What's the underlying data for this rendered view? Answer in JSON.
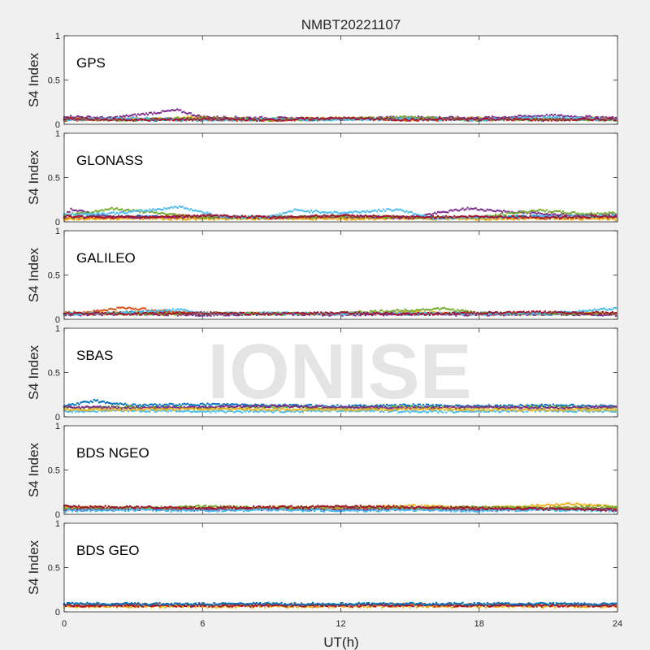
{
  "figure": {
    "title": "NMBT20221107",
    "xlabel": "UT(h)",
    "watermark": "IONISE",
    "background_color": "#f0f0f0",
    "axes_color": "#ffffff",
    "watermark_color": "#e4e4e4"
  },
  "palette": [
    "#0072bd",
    "#d95319",
    "#edb120",
    "#7e2f8e",
    "#77ac30",
    "#4dbeee",
    "#a2142f"
  ],
  "chart_data": [
    {
      "type": "scatter",
      "panel_label": "GPS",
      "ylabel": "S4 Index",
      "xlim": [
        0,
        24
      ],
      "ylim": [
        0,
        1
      ],
      "xticks": [
        0,
        6,
        12,
        18,
        24
      ],
      "yticks": [
        0,
        0.5,
        1
      ],
      "ytick_labels": [
        "0",
        "0.5",
        "1"
      ],
      "show_xtick_labels": false,
      "series": [
        {
          "color": "#0072bd",
          "x": [
            0,
            3,
            6,
            9,
            12,
            15,
            18,
            21,
            24
          ],
          "y": [
            0.06,
            0.05,
            0.05,
            0.06,
            0.05,
            0.07,
            0.06,
            0.05,
            0.06
          ]
        },
        {
          "color": "#d95319",
          "x": [
            0,
            3,
            6,
            9,
            12,
            15,
            18,
            21,
            24
          ],
          "y": [
            0.05,
            0.06,
            0.05,
            0.05,
            0.06,
            0.05,
            0.05,
            0.06,
            0.05
          ]
        },
        {
          "color": "#edb120",
          "x": [
            0,
            3,
            6,
            9,
            12,
            15,
            18,
            21,
            24
          ],
          "y": [
            0.07,
            0.06,
            0.08,
            0.06,
            0.07,
            0.06,
            0.07,
            0.06,
            0.07
          ]
        },
        {
          "color": "#7e2f8e",
          "x": [
            0,
            2,
            4.9,
            6,
            9,
            12,
            15,
            18,
            21,
            24
          ],
          "y": [
            0.09,
            0.07,
            0.16,
            0.08,
            0.07,
            0.06,
            0.08,
            0.07,
            0.1,
            0.07
          ]
        },
        {
          "color": "#77ac30",
          "x": [
            0,
            3,
            6,
            9,
            12,
            15,
            18,
            21,
            24
          ],
          "y": [
            0.06,
            0.05,
            0.07,
            0.05,
            0.06,
            0.08,
            0.05,
            0.06,
            0.05
          ]
        },
        {
          "color": "#4dbeee",
          "x": [
            0,
            3,
            6,
            9,
            12,
            15,
            18,
            21,
            24
          ],
          "y": [
            0.05,
            0.07,
            0.05,
            0.06,
            0.05,
            0.06,
            0.05,
            0.08,
            0.05
          ]
        },
        {
          "color": "#a2142f",
          "x": [
            0,
            3,
            6,
            9,
            12,
            15,
            18,
            21,
            24
          ],
          "y": [
            0.06,
            0.05,
            0.06,
            0.05,
            0.07,
            0.05,
            0.06,
            0.05,
            0.06
          ]
        }
      ]
    },
    {
      "type": "scatter",
      "panel_label": "GLONASS",
      "ylabel": "S4 Index",
      "xlim": [
        0,
        24
      ],
      "ylim": [
        0,
        1
      ],
      "xticks": [
        0,
        6,
        12,
        18,
        24
      ],
      "yticks": [
        0,
        0.5,
        1
      ],
      "ytick_labels": [
        "0",
        "0.5",
        "1"
      ],
      "show_xtick_labels": false,
      "series": [
        {
          "color": "#0072bd",
          "x": [
            0,
            3,
            6,
            9,
            12,
            15,
            18,
            21,
            24
          ],
          "y": [
            0.05,
            0.06,
            0.05,
            0.05,
            0.06,
            0.05,
            0.05,
            0.06,
            0.05
          ]
        },
        {
          "color": "#d95319",
          "x": [
            0,
            3,
            6,
            9,
            12,
            15,
            18,
            21,
            24
          ],
          "y": [
            0.04,
            0.05,
            0.05,
            0.04,
            0.05,
            0.04,
            0.05,
            0.04,
            0.05
          ]
        },
        {
          "color": "#edb120",
          "x": [
            0,
            3,
            6,
            9,
            12,
            15,
            18,
            21,
            24
          ],
          "y": [
            0.03,
            0.04,
            0.03,
            0.04,
            0.03,
            0.04,
            0.03,
            0.04,
            0.03
          ]
        },
        {
          "color": "#7e2f8e",
          "x": [
            0,
            0.3,
            2,
            6,
            9,
            12,
            15,
            17.5,
            20,
            22,
            24
          ],
          "y": [
            0.07,
            0.14,
            0.05,
            0.06,
            0.05,
            0.06,
            0.05,
            0.15,
            0.1,
            0.08,
            0.07
          ]
        },
        {
          "color": "#77ac30",
          "x": [
            0,
            1,
            2,
            6,
            9,
            12,
            15,
            18,
            20.5,
            22.5,
            24
          ],
          "y": [
            0.08,
            0.1,
            0.15,
            0.05,
            0.05,
            0.06,
            0.05,
            0.05,
            0.13,
            0.09,
            0.1
          ]
        },
        {
          "color": "#4dbeee",
          "x": [
            0,
            2.5,
            4,
            5,
            7,
            9,
            10,
            12,
            14.5,
            16,
            18,
            21,
            24
          ],
          "y": [
            0.08,
            0.1,
            0.14,
            0.17,
            0.05,
            0.06,
            0.13,
            0.1,
            0.14,
            0.04,
            0.05,
            0.06,
            0.07
          ]
        },
        {
          "color": "#a2142f",
          "x": [
            0,
            3,
            6,
            9,
            12,
            15,
            18,
            21,
            24
          ],
          "y": [
            0.06,
            0.05,
            0.07,
            0.05,
            0.07,
            0.05,
            0.06,
            0.05,
            0.06
          ]
        }
      ]
    },
    {
      "type": "scatter",
      "panel_label": "GALILEO",
      "ylabel": "S4 Index",
      "xlim": [
        0,
        24
      ],
      "ylim": [
        0,
        1
      ],
      "xticks": [
        0,
        6,
        12,
        18,
        24
      ],
      "yticks": [
        0,
        0.5,
        1
      ],
      "ytick_labels": [
        "0",
        "0.5",
        "1"
      ],
      "show_xtick_labels": false,
      "series": [
        {
          "color": "#0072bd",
          "x": [
            0,
            3,
            6,
            9,
            12,
            15,
            18,
            21,
            24
          ],
          "y": [
            0.06,
            0.08,
            0.07,
            0.06,
            0.07,
            0.06,
            0.07,
            0.06,
            0.06
          ]
        },
        {
          "color": "#d95319",
          "x": [
            0,
            1,
            2.6,
            6,
            9,
            12,
            15,
            18,
            21,
            24
          ],
          "y": [
            0.07,
            0.08,
            0.13,
            0.06,
            0.07,
            0.06,
            0.07,
            0.06,
            0.07,
            0.06
          ]
        },
        {
          "color": "#edb120",
          "x": [
            0,
            3,
            6,
            9,
            12,
            15,
            18,
            21,
            24
          ],
          "y": [
            0.06,
            0.07,
            0.06,
            0.07,
            0.06,
            0.08,
            0.06,
            0.07,
            0.06
          ]
        },
        {
          "color": "#7e2f8e",
          "x": [
            0,
            3,
            6,
            9,
            12,
            15,
            18,
            21,
            24
          ],
          "y": [
            0.05,
            0.06,
            0.05,
            0.06,
            0.05,
            0.06,
            0.05,
            0.06,
            0.05
          ]
        },
        {
          "color": "#77ac30",
          "x": [
            0,
            3,
            6,
            9,
            12,
            16.5,
            18,
            21,
            24
          ],
          "y": [
            0.07,
            0.06,
            0.07,
            0.06,
            0.07,
            0.12,
            0.07,
            0.06,
            0.07
          ]
        },
        {
          "color": "#4dbeee",
          "x": [
            0,
            3,
            5,
            6,
            9,
            12,
            15,
            18,
            21,
            24
          ],
          "y": [
            0.06,
            0.07,
            0.11,
            0.06,
            0.07,
            0.06,
            0.07,
            0.06,
            0.07,
            0.12
          ]
        },
        {
          "color": "#a2142f",
          "x": [
            0,
            3,
            6,
            9,
            12,
            15,
            18,
            21,
            24
          ],
          "y": [
            0.07,
            0.06,
            0.07,
            0.06,
            0.07,
            0.06,
            0.07,
            0.08,
            0.07
          ]
        }
      ]
    },
    {
      "type": "scatter",
      "panel_label": "SBAS",
      "ylabel": "S4 Index",
      "xlim": [
        0,
        24
      ],
      "ylim": [
        0,
        1
      ],
      "xticks": [
        0,
        6,
        12,
        18,
        24
      ],
      "yticks": [
        0,
        0.5,
        1
      ],
      "ytick_labels": [
        "0",
        "0.5",
        "1"
      ],
      "show_xtick_labels": false,
      "series": [
        {
          "color": "#0072bd",
          "x": [
            0,
            1.3,
            3,
            6,
            9,
            12,
            15,
            18,
            21,
            24
          ],
          "y": [
            0.12,
            0.18,
            0.13,
            0.14,
            0.13,
            0.12,
            0.13,
            0.12,
            0.13,
            0.12
          ]
        },
        {
          "color": "#77ac30",
          "x": [
            0,
            3,
            6,
            9,
            12,
            15,
            18,
            21,
            24
          ],
          "y": [
            0.1,
            0.11,
            0.1,
            0.11,
            0.1,
            0.11,
            0.1,
            0.11,
            0.1
          ]
        },
        {
          "color": "#7e2f8e",
          "x": [
            0,
            3,
            6,
            9,
            12,
            15,
            18,
            21,
            24
          ],
          "y": [
            0.11,
            0.1,
            0.11,
            0.12,
            0.11,
            0.1,
            0.11,
            0.1,
            0.11
          ]
        },
        {
          "color": "#4dbeee",
          "x": [
            0,
            3,
            6,
            9,
            12,
            15,
            18,
            21,
            24
          ],
          "y": [
            0.06,
            0.07,
            0.06,
            0.06,
            0.07,
            0.06,
            0.06,
            0.07,
            0.06
          ]
        },
        {
          "color": "#edb120",
          "x": [
            0,
            3,
            6,
            9,
            12,
            15,
            18,
            21,
            24
          ],
          "y": [
            0.08,
            0.08,
            0.09,
            0.08,
            0.08,
            0.09,
            0.08,
            0.08,
            0.08
          ]
        }
      ]
    },
    {
      "type": "scatter",
      "panel_label": "BDS NGEO",
      "ylabel": "S4 Index",
      "xlim": [
        0,
        24
      ],
      "ylim": [
        0,
        1
      ],
      "xticks": [
        0,
        6,
        12,
        18,
        24
      ],
      "yticks": [
        0,
        0.5,
        1
      ],
      "ytick_labels": [
        "0",
        "0.5",
        "1"
      ],
      "show_xtick_labels": false,
      "series": [
        {
          "color": "#0072bd",
          "x": [
            0,
            3,
            6,
            9,
            12,
            15,
            18,
            21,
            24
          ],
          "y": [
            0.07,
            0.06,
            0.07,
            0.06,
            0.07,
            0.06,
            0.07,
            0.06,
            0.07
          ]
        },
        {
          "color": "#d95319",
          "x": [
            0,
            3,
            6,
            9,
            12,
            15,
            18,
            21,
            24
          ],
          "y": [
            0.06,
            0.07,
            0.06,
            0.07,
            0.06,
            0.07,
            0.06,
            0.07,
            0.06
          ]
        },
        {
          "color": "#edb120",
          "x": [
            0,
            3,
            6,
            9,
            12,
            15,
            18,
            22,
            24
          ],
          "y": [
            0.08,
            0.07,
            0.06,
            0.08,
            0.07,
            0.1,
            0.07,
            0.12,
            0.08
          ]
        },
        {
          "color": "#7e2f8e",
          "x": [
            0,
            3,
            6,
            9,
            12,
            15,
            18,
            21,
            24
          ],
          "y": [
            0.05,
            0.06,
            0.05,
            0.06,
            0.05,
            0.06,
            0.05,
            0.06,
            0.05
          ]
        },
        {
          "color": "#77ac30",
          "x": [
            0,
            3,
            6,
            9,
            12,
            15,
            18,
            21,
            24
          ],
          "y": [
            0.08,
            0.07,
            0.09,
            0.07,
            0.08,
            0.07,
            0.08,
            0.07,
            0.09
          ]
        },
        {
          "color": "#4dbeee",
          "x": [
            0,
            3,
            6,
            9,
            12,
            15,
            18,
            21,
            24
          ],
          "y": [
            0.04,
            0.05,
            0.04,
            0.05,
            0.04,
            0.05,
            0.04,
            0.05,
            0.04
          ]
        },
        {
          "color": "#a2142f",
          "x": [
            0,
            3,
            6,
            9,
            12,
            15,
            18,
            21,
            24
          ],
          "y": [
            0.09,
            0.08,
            0.07,
            0.08,
            0.09,
            0.08,
            0.07,
            0.06,
            0.05
          ]
        }
      ]
    },
    {
      "type": "scatter",
      "panel_label": "BDS GEO",
      "ylabel": "S4 Index",
      "xlim": [
        0,
        24
      ],
      "ylim": [
        0,
        1
      ],
      "xticks": [
        0,
        6,
        12,
        18,
        24
      ],
      "yticks": [
        0,
        0.5,
        1
      ],
      "ytick_labels": [
        "0",
        "0.5",
        "1"
      ],
      "xtick_labels": [
        "0",
        "6",
        "12",
        "18",
        "24"
      ],
      "show_xtick_labels": true,
      "series": [
        {
          "color": "#d95319",
          "x": [
            0,
            3,
            6,
            9,
            12,
            15,
            18,
            21,
            24
          ],
          "y": [
            0.08,
            0.08,
            0.08,
            0.08,
            0.08,
            0.08,
            0.08,
            0.08,
            0.08
          ]
        },
        {
          "color": "#edb120",
          "x": [
            0,
            3,
            6,
            9,
            12,
            15,
            18,
            21,
            24
          ],
          "y": [
            0.06,
            0.06,
            0.06,
            0.06,
            0.06,
            0.06,
            0.06,
            0.06,
            0.06
          ]
        },
        {
          "color": "#a2142f",
          "x": [
            0,
            3,
            6,
            9,
            12,
            15,
            18,
            21,
            24
          ],
          "y": [
            0.07,
            0.07,
            0.07,
            0.07,
            0.07,
            0.07,
            0.07,
            0.07,
            0.07
          ]
        },
        {
          "color": "#0072bd",
          "x": [
            0,
            3,
            6,
            9,
            12,
            15,
            18,
            21,
            24
          ],
          "y": [
            0.09,
            0.09,
            0.09,
            0.09,
            0.09,
            0.09,
            0.09,
            0.09,
            0.09
          ]
        }
      ]
    }
  ]
}
